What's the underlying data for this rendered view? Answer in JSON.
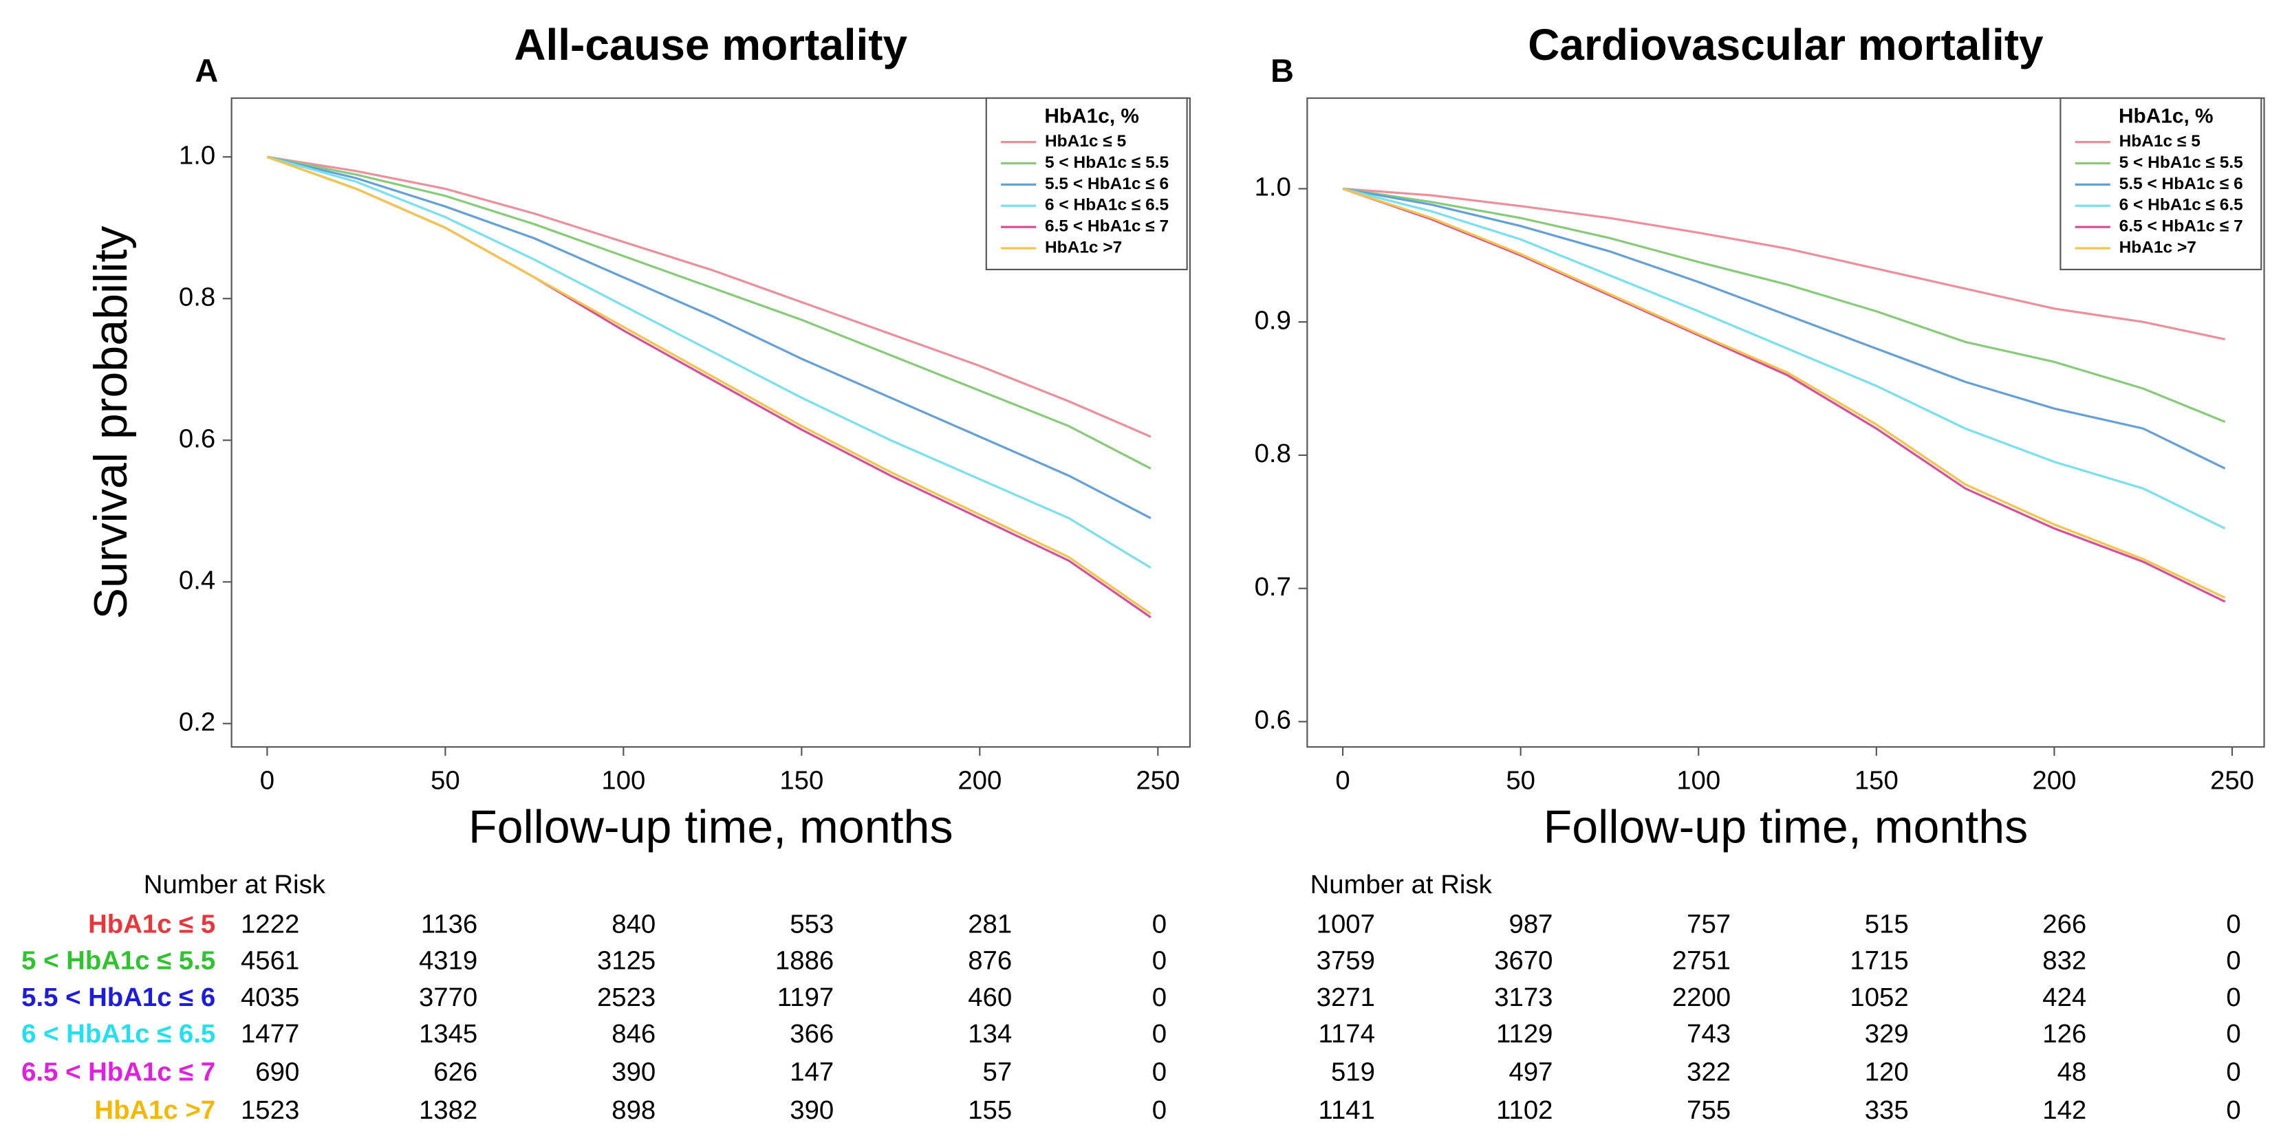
{
  "chart_data": [
    {
      "type": "line",
      "panel": "A",
      "title": "All-cause mortality",
      "xlabel": "Follow-up time, months",
      "ylabel": "Survival probability",
      "x": [
        0,
        25,
        50,
        75,
        100,
        125,
        150,
        175,
        200,
        225,
        248
      ],
      "xlim": [
        -10,
        259
      ],
      "xticks": [
        0,
        50,
        100,
        150,
        200,
        250
      ],
      "ylim": [
        0.167,
        1.083
      ],
      "yticks": [
        0.2,
        0.4,
        0.6,
        0.8,
        {
          "value": 1,
          "label": "1.0"
        }
      ],
      "legend_title": "HbA1c, %",
      "legend": "top-right",
      "series": [
        {
          "name": "HbA1c ≤ 5",
          "color": "#ec8f9b",
          "values": [
            1.0,
            0.98,
            0.955,
            0.92,
            0.88,
            0.84,
            0.795,
            0.75,
            0.705,
            0.655,
            0.605
          ]
        },
        {
          "name": "5 < HbA1c ≤ 5.5",
          "color": "#86cc78",
          "values": [
            1.0,
            0.975,
            0.945,
            0.905,
            0.86,
            0.815,
            0.77,
            0.72,
            0.67,
            0.62,
            0.56
          ]
        },
        {
          "name": "5.5 < HbA1c ≤ 6",
          "color": "#64a0d8",
          "values": [
            1.0,
            0.97,
            0.93,
            0.885,
            0.83,
            0.775,
            0.715,
            0.66,
            0.605,
            0.55,
            0.49
          ]
        },
        {
          "name": "6 < HbA1c ≤ 6.5",
          "color": "#78e0ee",
          "values": [
            1.0,
            0.965,
            0.915,
            0.855,
            0.79,
            0.725,
            0.66,
            0.6,
            0.545,
            0.49,
            0.42
          ]
        },
        {
          "name": "6.5 < HbA1c ≤ 7",
          "color": "#d64f98",
          "values": [
            1.0,
            0.955,
            0.9,
            0.83,
            0.755,
            0.685,
            0.615,
            0.55,
            0.49,
            0.43,
            0.35
          ]
        },
        {
          "name": "HbA1c >7",
          "color": "#f3c54c",
          "values": [
            1.0,
            0.955,
            0.9,
            0.83,
            0.76,
            0.69,
            0.62,
            0.555,
            0.495,
            0.435,
            0.355
          ]
        }
      ],
      "risk_table": {
        "title": "Number at Risk",
        "rows": [
          {
            "label": "HbA1c ≤ 5",
            "color": "#e8363a",
            "counts": [
              1222,
              1136,
              840,
              553,
              281,
              0
            ]
          },
          {
            "label": "5 < HbA1c ≤ 5.5",
            "color": "#2fc42f",
            "counts": [
              4561,
              4319,
              3125,
              1886,
              876,
              0
            ]
          },
          {
            "label": "5.5 < HbA1c ≤ 6",
            "color": "#1c1ce0",
            "counts": [
              4035,
              3770,
              2523,
              1197,
              460,
              0
            ]
          },
          {
            "label": "6 < HbA1c ≤ 6.5",
            "color": "#22e0f0",
            "counts": [
              1477,
              1345,
              846,
              366,
              134,
              0
            ]
          },
          {
            "label": "6.5 < HbA1c ≤ 7",
            "color": "#e020e0",
            "counts": [
              690,
              626,
              390,
              147,
              57,
              0
            ]
          },
          {
            "label": "HbA1c >7",
            "color": "#f5b800",
            "counts": [
              1523,
              1382,
              898,
              390,
              155,
              0
            ]
          }
        ]
      }
    },
    {
      "type": "line",
      "panel": "B",
      "title": "Cardiovascular mortality",
      "xlabel": "Follow-up time, months",
      "x": [
        0,
        25,
        50,
        75,
        100,
        125,
        150,
        175,
        200,
        225,
        248
      ],
      "xlim": [
        -10,
        259
      ],
      "xticks": [
        0,
        50,
        100,
        150,
        200,
        250
      ],
      "ylim": [
        0.581,
        1.068
      ],
      "yticks": [
        0.6,
        0.7,
        0.8,
        0.9,
        {
          "value": 1,
          "label": "1.0"
        }
      ],
      "legend_title": "HbA1c, %",
      "legend": "top-right",
      "series": [
        {
          "name": "HbA1c ≤ 5",
          "color": "#ec8f9b",
          "values": [
            1.0,
            0.995,
            0.987,
            0.978,
            0.967,
            0.955,
            0.94,
            0.925,
            0.91,
            0.9,
            0.887
          ]
        },
        {
          "name": "5 < HbA1c ≤ 5.5",
          "color": "#86cc78",
          "values": [
            1.0,
            0.99,
            0.978,
            0.963,
            0.945,
            0.928,
            0.908,
            0.885,
            0.87,
            0.85,
            0.825
          ]
        },
        {
          "name": "5.5 < HbA1c ≤ 6",
          "color": "#64a0d8",
          "values": [
            1.0,
            0.988,
            0.972,
            0.953,
            0.93,
            0.905,
            0.88,
            0.855,
            0.835,
            0.82,
            0.79
          ]
        },
        {
          "name": "6 < HbA1c ≤ 6.5",
          "color": "#78e0ee",
          "values": [
            1.0,
            0.983,
            0.962,
            0.935,
            0.908,
            0.88,
            0.852,
            0.82,
            0.795,
            0.775,
            0.745
          ]
        },
        {
          "name": "6.5 < HbA1c ≤ 7",
          "color": "#d64f98",
          "values": [
            1.0,
            0.977,
            0.95,
            0.92,
            0.89,
            0.86,
            0.82,
            0.775,
            0.745,
            0.72,
            0.69
          ]
        },
        {
          "name": "HbA1c >7",
          "color": "#f3c54c",
          "values": [
            1.0,
            0.978,
            0.951,
            0.921,
            0.891,
            0.862,
            0.823,
            0.778,
            0.748,
            0.722,
            0.693
          ]
        }
      ],
      "risk_table": {
        "title": "Number at Risk",
        "rows": [
          {
            "counts": [
              1007,
              987,
              757,
              515,
              266,
              0
            ]
          },
          {
            "counts": [
              3759,
              3670,
              2751,
              1715,
              832,
              0
            ]
          },
          {
            "counts": [
              3271,
              3173,
              2200,
              1052,
              424,
              0
            ]
          },
          {
            "counts": [
              1174,
              1129,
              743,
              329,
              126,
              0
            ]
          },
          {
            "counts": [
              519,
              497,
              322,
              120,
              48,
              0
            ]
          },
          {
            "counts": [
              1141,
              1102,
              755,
              335,
              142,
              0
            ]
          }
        ]
      }
    }
  ]
}
